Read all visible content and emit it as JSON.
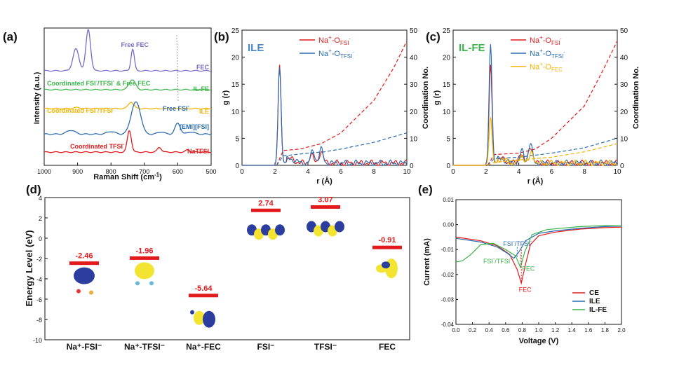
{
  "colors": {
    "red": "#e31a1c",
    "blue": "#2b6cb0",
    "green": "#3bb54a",
    "orange": "#f5b400",
    "purple": "#7b68c8",
    "ile_title": "#4a86c8",
    "ilfe_title": "#3bb54a",
    "orb_blue": "#2b3ea0",
    "orb_yellow": "#f2e430"
  },
  "chart_data": [
    {
      "panel": "a",
      "type": "line",
      "xlabel": "Raman Shift (cm",
      "xlabel_sup": "-1",
      "xlabel_end": ")",
      "ylabel": "Intensity (a.u.)",
      "xlim": [
        1000,
        500
      ],
      "xticks": [
        1000,
        900,
        800,
        700,
        600,
        500
      ],
      "series": [
        {
          "name": "FEC",
          "color": "#7b68c8",
          "offset": 5,
          "peaks": [
            [
              905,
              1.0,
              9
            ],
            [
              868,
              1.9,
              7
            ],
            [
              735,
              1.0,
              5
            ]
          ]
        },
        {
          "name": "IL-FE",
          "color": "#3bb54a",
          "offset": 4,
          "peaks": [
            [
              740,
              0.35,
              8
            ],
            [
              730,
              0.2,
              8
            ]
          ]
        },
        {
          "name": "ILE",
          "color": "#f5b400",
          "offset": 3,
          "peaks": [
            [
              740,
              0.3,
              8
            ],
            [
              900,
              0.05,
              10
            ]
          ]
        },
        {
          "name": "[EMI][FSI]",
          "color": "#2b6cb0",
          "offset": 1.65,
          "peaks": [
            [
              730,
              1.2,
              12
            ],
            [
              715,
              0.6,
              10
            ],
            [
              600,
              0.5,
              8
            ],
            [
              920,
              0.18,
              12
            ],
            [
              800,
              0.12,
              12
            ],
            [
              650,
              0.1,
              10
            ],
            [
              560,
              0.1,
              10
            ]
          ]
        },
        {
          "name": "NaTFSI",
          "color": "#e31a1c",
          "offset": 0.7,
          "peaks": [
            [
              745,
              1.0,
              6
            ],
            [
              655,
              0.22,
              6
            ],
            [
              570,
              0.1,
              6
            ]
          ]
        }
      ],
      "annotations": [
        "Free FEC",
        "Coordinated FSI",
        "Coordinated TFSI",
        "Free FSI",
        "& Free FEC"
      ]
    },
    {
      "panel": "b",
      "type": "line",
      "title": "ILE",
      "xlabel": "r (Å)",
      "ylabel": "g (r)",
      "y2label": "Coordination No.",
      "xlim": [
        0,
        10
      ],
      "ylim": [
        0,
        25
      ],
      "y2lim": [
        0,
        50
      ],
      "xticks": [
        0,
        2,
        4,
        6,
        8,
        10
      ],
      "yticks": [
        0,
        5,
        10,
        15,
        20,
        25
      ],
      "y2ticks": [
        0,
        10,
        20,
        30,
        40,
        50
      ],
      "series": [
        {
          "name": "Na+-OFSI-",
          "color": "#e31a1c",
          "peak": 18.5,
          "second": [
            [
              4.2,
              1.6
            ],
            [
              4.8,
              2.2
            ]
          ],
          "cn": [
            [
              2.1,
              0
            ],
            [
              2.5,
              5.5
            ],
            [
              3.5,
              6
            ],
            [
              4.8,
              8
            ],
            [
              6,
              12
            ],
            [
              8,
              24
            ],
            [
              9.2,
              36
            ],
            [
              10,
              46
            ]
          ]
        },
        {
          "name": "Na+-OTFSI-",
          "color": "#2b6cb0",
          "peak": 18.0,
          "second": [
            [
              4.3,
              2.3
            ],
            [
              4.8,
              2.5
            ]
          ],
          "cn": [
            [
              2.1,
              0
            ],
            [
              2.5,
              3.5
            ],
            [
              4,
              4.5
            ],
            [
              5,
              5
            ],
            [
              6,
              6
            ],
            [
              8,
              8.5
            ],
            [
              10,
              12
            ]
          ]
        }
      ]
    },
    {
      "panel": "c",
      "type": "line",
      "title": "IL-FE",
      "xlabel": "r (Å)",
      "ylabel": "g (r)",
      "y2label": "Coordination No.",
      "xlim": [
        0,
        10
      ],
      "ylim": [
        0,
        25
      ],
      "y2lim": [
        0,
        50
      ],
      "xticks": [
        0,
        2,
        4,
        6,
        8,
        10
      ],
      "yticks": [
        0,
        5,
        10,
        15,
        20,
        25
      ],
      "y2ticks": [
        0,
        10,
        20,
        30,
        40,
        50
      ],
      "series": [
        {
          "name": "Na+-OFSI-",
          "color": "#e31a1c",
          "peak": 18.5,
          "second": [
            [
              4.1,
              2
            ],
            [
              4.7,
              3.3
            ]
          ],
          "cn": [
            [
              2.1,
              0
            ],
            [
              2.5,
              4
            ],
            [
              4,
              4.5
            ],
            [
              5,
              6
            ],
            [
              6,
              10
            ],
            [
              8,
              22
            ],
            [
              9.2,
              36
            ],
            [
              10,
              46
            ]
          ]
        },
        {
          "name": "Na+-OTFSI-",
          "color": "#2b6cb0",
          "peak": 22.3,
          "second": [
            [
              4.2,
              2.2
            ],
            [
              4.7,
              3.6
            ]
          ],
          "cn": [
            [
              2.1,
              0
            ],
            [
              2.5,
              2.5
            ],
            [
              4,
              3
            ],
            [
              6,
              4.5
            ],
            [
              8,
              6.5
            ],
            [
              10,
              10
            ]
          ]
        },
        {
          "name": "Na+-OFEC",
          "color": "#f5b400",
          "peak": 8.8,
          "second": [
            [
              4.2,
              1.5
            ],
            [
              4.8,
              2
            ]
          ],
          "cn": [
            [
              2.1,
              0
            ],
            [
              2.5,
              1
            ],
            [
              4,
              2
            ],
            [
              6,
              3
            ],
            [
              8,
              5
            ],
            [
              10,
              8
            ]
          ]
        }
      ]
    },
    {
      "panel": "d",
      "type": "bar",
      "ylabel": "Energy Level (eV)",
      "ylim": [
        -10,
        4
      ],
      "yticks": [
        -10,
        -8,
        -6,
        -4,
        -2,
        0,
        2,
        4
      ],
      "categories": [
        "Na⁺-FSI⁻",
        "Na⁺-TFSI⁻",
        "Na⁺-FEC",
        "FSI⁻",
        "TFSI⁻",
        "FEC"
      ],
      "values": [
        -2.46,
        -1.96,
        -5.64,
        2.74,
        3.07,
        -0.91
      ],
      "value_labels": [
        "-2.46",
        "-1.96",
        "-5.64",
        "2.74",
        "3.07",
        "-0.91"
      ]
    },
    {
      "panel": "e",
      "type": "line",
      "xlabel": "Voltage (V)",
      "ylabel": "Current (mA)",
      "xlim": [
        0,
        2
      ],
      "ylim": [
        -0.04,
        0.01
      ],
      "xticks": [
        "0.0",
        "0.2",
        "0.4",
        "0.6",
        "0.8",
        "1.0",
        "1.2",
        "1.4",
        "1.6",
        "1.8",
        "2.0"
      ],
      "yticks": [
        "0.01",
        "0.00",
        "-0.01",
        "-0.02",
        "-0.03",
        "-0.04"
      ],
      "series": [
        {
          "name": "CE",
          "color": "#e31a1c",
          "points": [
            [
              0,
              -0.005
            ],
            [
              0.3,
              -0.0065
            ],
            [
              0.5,
              -0.0085
            ],
            [
              0.65,
              -0.012
            ],
            [
              0.74,
              -0.018
            ],
            [
              0.79,
              -0.0235
            ],
            [
              0.84,
              -0.016
            ],
            [
              0.9,
              -0.008
            ],
            [
              1.0,
              -0.0045
            ],
            [
              1.2,
              -0.003
            ],
            [
              1.5,
              -0.0018
            ],
            [
              1.8,
              -0.0012
            ],
            [
              2.0,
              -0.001
            ]
          ]
        },
        {
          "name": "ILE",
          "color": "#2b6cb0",
          "points": [
            [
              0,
              -0.0055
            ],
            [
              0.3,
              -0.007
            ],
            [
              0.5,
              -0.009
            ],
            [
              0.62,
              -0.0115
            ],
            [
              0.7,
              -0.0135
            ],
            [
              0.76,
              -0.011
            ],
            [
              0.84,
              -0.0065
            ],
            [
              1.0,
              -0.0035
            ],
            [
              1.2,
              -0.0025
            ],
            [
              1.5,
              -0.0015
            ],
            [
              1.8,
              -0.0008
            ],
            [
              2.0,
              -0.0006
            ]
          ]
        },
        {
          "name": "IL-FE",
          "color": "#3bb54a",
          "points": [
            [
              0,
              -0.015
            ],
            [
              0.08,
              -0.0145
            ],
            [
              0.18,
              -0.012
            ],
            [
              0.3,
              -0.008
            ],
            [
              0.45,
              -0.0075
            ],
            [
              0.6,
              -0.01
            ],
            [
              0.72,
              -0.0125
            ],
            [
              0.78,
              -0.0172
            ],
            [
              0.83,
              -0.011
            ],
            [
              0.92,
              -0.004
            ],
            [
              1.1,
              -0.002
            ],
            [
              1.5,
              -0.0008
            ],
            [
              1.8,
              -0.0004
            ],
            [
              2.0,
              -0.0005
            ]
          ]
        }
      ],
      "annotations": [
        "FSI",
        "/TFSI",
        "FEC"
      ]
    }
  ],
  "labels": {
    "a": "(a)",
    "b": "(b)",
    "c": "(c)",
    "d": "(d)",
    "e": "(e)",
    "free_fec": "Free FEC",
    "coord_fsi": "Coordinated FSI",
    "coord_tfsi": "Coordinated TFSI",
    "slash_tfsi": "/TFSI",
    "amp_free_fec": "& Free FEC",
    "free_fsi": "Free FSI",
    "minus": "-",
    "fec": "FEC",
    "ilfe": "IL-FE",
    "ile": "ILE",
    "emifsi": "[EMI][FSI]",
    "natfsi": "NaTFSI",
    "na": "Na",
    "plus": "+",
    "o_fsi": "-O",
    "fsi_sub": "FSI",
    "tfsi_sub": "TFSI",
    "fec_sub": "FEC",
    "e_fsi": "FSI",
    "e_tfsi": "/TFSI",
    "e_fec1": "FEC",
    "e_fec2": "FEC"
  }
}
